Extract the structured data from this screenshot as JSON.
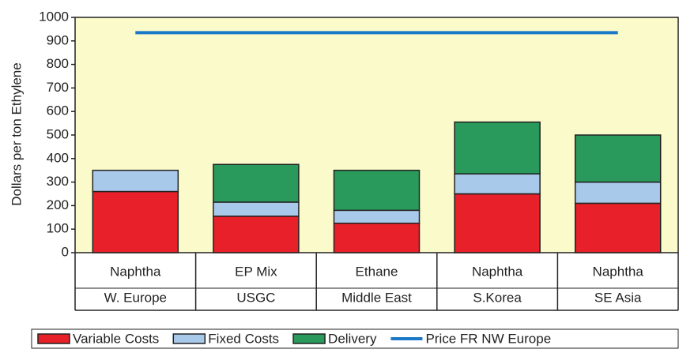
{
  "chart_data": {
    "type": "bar",
    "stacked": true,
    "y_label": "Dollars  per ton Ethylene",
    "categories": [
      [
        "Naphtha",
        "W. Europe"
      ],
      [
        "EP Mix",
        "USGC"
      ],
      [
        "Ethane",
        "Middle East"
      ],
      [
        "Naphtha",
        "S.Korea"
      ],
      [
        "Naphtha",
        "SE Asia"
      ]
    ],
    "series": [
      {
        "name": "Variable Costs",
        "color": "#e8202a",
        "values": [
          260,
          155,
          125,
          250,
          210
        ]
      },
      {
        "name": "Fixed Costs",
        "color": "#a9c9ea",
        "values": [
          90,
          60,
          55,
          85,
          90
        ]
      },
      {
        "name": "Delivery",
        "color": "#2a9a5c",
        "values": [
          0,
          160,
          170,
          220,
          200
        ]
      },
      {
        "name": "Price FR NW Europe",
        "color": "#1a78c8",
        "type": "line",
        "values": [
          935,
          935,
          935,
          935,
          935
        ]
      }
    ],
    "ylim": [
      0,
      1000
    ],
    "yticks": [
      0,
      100,
      200,
      300,
      400,
      500,
      600,
      700,
      800,
      900,
      1000
    ],
    "background": "#fbfacb",
    "legend": "bottom"
  }
}
